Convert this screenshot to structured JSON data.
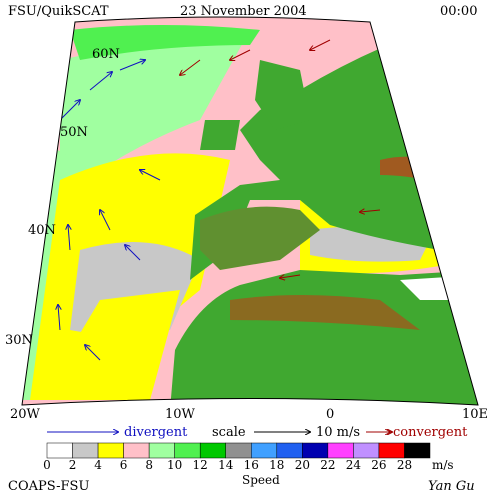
{
  "header": {
    "title": "FSU/QuikSCAT",
    "date": "23 November 2004",
    "time": "00:00"
  },
  "map": {
    "lat_labels": [
      "60N",
      "50N",
      "40N",
      "30N"
    ],
    "lon_labels": [
      "20W",
      "10W",
      "0",
      "10E"
    ]
  },
  "legend": {
    "divergent": "divergent",
    "scale": "scale",
    "scale_value": "10 m/s",
    "convergent": "convergent"
  },
  "colorbar": {
    "labels": [
      "0",
      "2",
      "4",
      "6",
      "8",
      "10",
      "12",
      "14",
      "16",
      "18",
      "20",
      "22",
      "24",
      "26",
      "28"
    ],
    "colors": [
      "#ffffff",
      "#c8c8c8",
      "#ffff00",
      "#ffc0c8",
      "#a0ffa0",
      "#50f050",
      "#00c800",
      "#909090",
      "#40a0ff",
      "#2060f0",
      "#0000b0",
      "#ff40ff",
      "#c090ff",
      "#ff0000",
      "#000000"
    ],
    "unit": "m/s",
    "title": "Speed"
  },
  "footer": {
    "credit": "COAPS-FSU",
    "author": "Yan Gu"
  }
}
